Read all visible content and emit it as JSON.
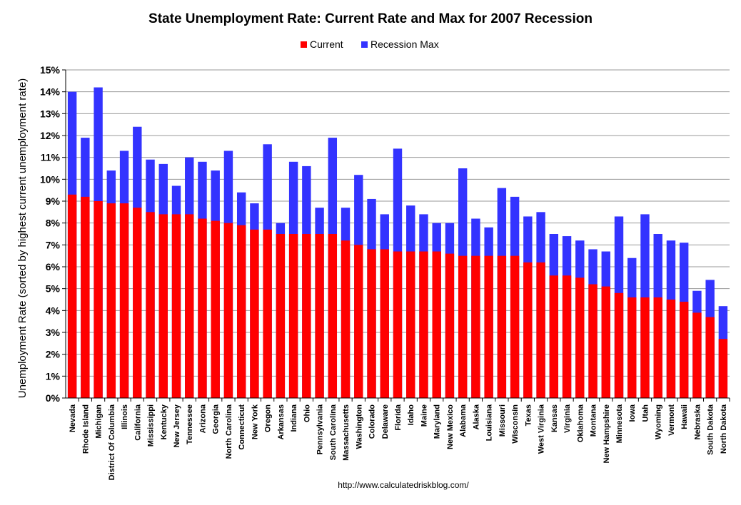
{
  "chart_data": {
    "type": "bar",
    "stacked": "overlay",
    "title": "State Unemployment Rate: Current Rate and Max for 2007 Recession",
    "ylabel": "Unemployment Rate (sorted by highest current unemployment rate)",
    "xlabel": "",
    "source": "http://www.calculatedriskblog.com/",
    "ylim": [
      0,
      15
    ],
    "yticks": [
      "0%",
      "1%",
      "2%",
      "3%",
      "4%",
      "5%",
      "6%",
      "7%",
      "8%",
      "9%",
      "10%",
      "11%",
      "12%",
      "13%",
      "14%",
      "15%"
    ],
    "grid": true,
    "legend_position": "top-center",
    "categories": [
      "Nevada",
      "Rhode Island",
      "Michigan",
      "District Of Columbia",
      "Illinois",
      "California",
      "Mississippi",
      "Kentucky",
      "New Jersey",
      "Tennessee",
      "Arizona",
      "Georgia",
      "North Carolina",
      "Connecticut",
      "New York",
      "Oregon",
      "Arkansas",
      "Indiana",
      "Ohio",
      "Pennsylvania",
      "South Carolina",
      "Massachusetts",
      "Washington",
      "Colorado",
      "Delaware",
      "Florida",
      "Idaho",
      "Maine",
      "Maryland",
      "New Mexico",
      "Alabama",
      "Alaska",
      "Louisiana",
      "Missouri",
      "Wisconsin",
      "Texas",
      "West Virginia",
      "Kansas",
      "Virginia",
      "Oklahoma",
      "Montana",
      "New Hampshire",
      "Minnesota",
      "Iowa",
      "Utah",
      "Wyoming",
      "Vermont",
      "Hawaii",
      "Nebraska",
      "South Dakota",
      "North Dakota"
    ],
    "series": [
      {
        "name": "Current",
        "color": "#ff0000",
        "values": [
          9.3,
          9.2,
          9.0,
          8.9,
          8.9,
          8.7,
          8.5,
          8.4,
          8.4,
          8.4,
          8.2,
          8.1,
          8.0,
          7.9,
          7.7,
          7.7,
          7.5,
          7.5,
          7.5,
          7.5,
          7.5,
          7.2,
          7.0,
          6.8,
          6.8,
          6.7,
          6.7,
          6.7,
          6.7,
          6.6,
          6.5,
          6.5,
          6.5,
          6.5,
          6.5,
          6.2,
          6.2,
          5.6,
          5.6,
          5.5,
          5.2,
          5.1,
          4.8,
          4.6,
          4.6,
          4.6,
          4.5,
          4.4,
          3.9,
          3.7,
          2.7
        ]
      },
      {
        "name": "Recession Max",
        "color": "#3333ff",
        "values": [
          14.0,
          11.9,
          14.2,
          10.4,
          11.3,
          12.4,
          10.9,
          10.7,
          9.7,
          11.0,
          10.8,
          10.4,
          11.3,
          9.4,
          8.9,
          11.6,
          8.0,
          10.8,
          10.6,
          8.7,
          11.9,
          8.7,
          10.2,
          9.1,
          8.4,
          11.4,
          8.8,
          8.4,
          8.0,
          8.0,
          10.5,
          8.2,
          7.8,
          9.6,
          9.2,
          8.3,
          8.5,
          7.5,
          7.4,
          7.2,
          6.8,
          6.7,
          8.3,
          6.4,
          8.4,
          7.5,
          7.2,
          7.1,
          4.9,
          5.4,
          4.2
        ]
      }
    ]
  }
}
